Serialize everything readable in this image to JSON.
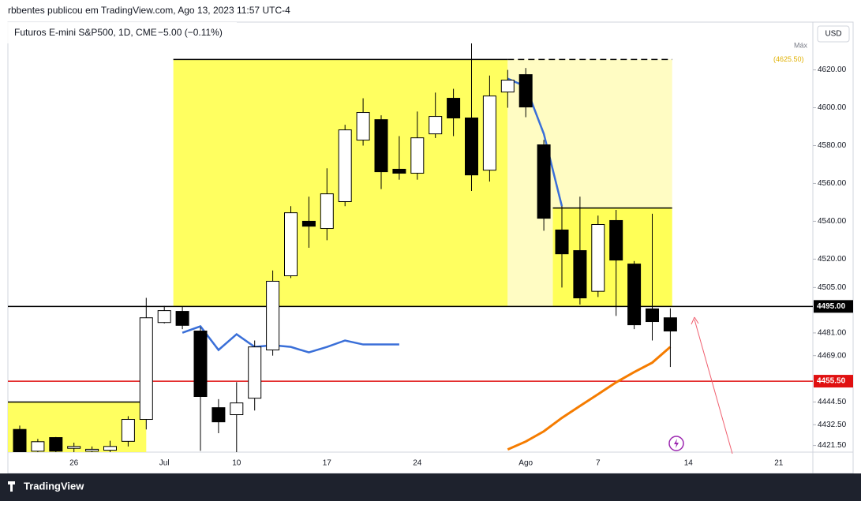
{
  "header": {
    "publisher": "rbbentes publicou em TradingView.com, Ago 13, 2023 11:57 UTC-4",
    "symbol": "Futuros E-mini S&P500, 1D, CME",
    "change": "−5.00 (−0.11%)",
    "currency": "USD",
    "max_label": "Máx",
    "footer": "TradingView"
  },
  "chart_data": {
    "type": "candlestick",
    "categories": [
      null,
      null,
      null,
      "26",
      null,
      null,
      null,
      null,
      "Jul",
      null,
      null,
      null,
      "10",
      null,
      null,
      null,
      null,
      "17",
      null,
      null,
      null,
      null,
      "24",
      null,
      null,
      null,
      null,
      null,
      "Ago",
      null,
      null,
      null,
      "7",
      null,
      null,
      null,
      null,
      "14",
      null,
      null,
      null,
      null,
      "21",
      null
    ],
    "open": [
      4430,
      4418.5,
      4425.7,
      4420,
      4418.5,
      4419,
      4423.7,
      4435.3,
      4486.5,
      4492.4,
      4482,
      4441.5,
      4437.8,
      4446.5,
      4472,
      4511.2,
      4540,
      4536.2,
      4550.4,
      4582.9,
      4593.7,
      4567.5,
      4565.4,
      4586.2,
      4605,
      4594.6,
      4567,
      4608.3,
      4617.5,
      4580.4,
      4535.4,
      4524.5,
      4503,
      4540.4,
      4517.4,
      4493.7,
      4489,
      null,
      null,
      null,
      null,
      null,
      null,
      null
    ],
    "high": [
      4432,
      4425,
      4426,
      4423,
      4421,
      4424,
      4437,
      4499.5,
      4495.3,
      4495,
      4484,
      4446,
      4455,
      4477,
      4514,
      4548,
      4553,
      4568,
      4591,
      4605,
      4596,
      4585,
      4598,
      4608,
      4610,
      4634,
      4617,
      4620,
      4621,
      4583,
      4548,
      4553,
      4543,
      4546,
      4519,
      4544,
      4494,
      null,
      null,
      null,
      null,
      null,
      null,
      null
    ],
    "low": [
      4416,
      4417,
      4417,
      4418,
      4417,
      4417,
      4421,
      4430,
      4486,
      4483,
      4418.7,
      4428,
      4418,
      4440,
      4469,
      4510,
      4526,
      4530,
      4548,
      4580,
      4557,
      4562,
      4562,
      4584,
      4585,
      4556,
      4561,
      4600,
      4595,
      4535,
      4505,
      4496,
      4500,
      4490,
      4483,
      4477,
      4463,
      null,
      null,
      null,
      null,
      null,
      null,
      null
    ],
    "close": [
      4418,
      4423.5,
      4418.5,
      4421,
      4419.5,
      4421,
      4435.3,
      4489,
      4492.8,
      4485,
      4447.4,
      4434,
      4444,
      4473.6,
      4508.3,
      4544.5,
      4537.4,
      4554.5,
      4588.3,
      4597.5,
      4566.2,
      4565.4,
      4584.1,
      4595.4,
      4594.6,
      4564.5,
      4606.2,
      4614.6,
      4600.4,
      4541.6,
      4522.8,
      4499.5,
      4538.3,
      4519.5,
      4485.3,
      4487,
      4482,
      null,
      null,
      null,
      null,
      null,
      null,
      null
    ],
    "up_color": "#ffffff",
    "down_color": "#000000",
    "overlays": [
      {
        "color": "#3a6fd8",
        "values": [
          null,
          null,
          null,
          null,
          null,
          null,
          null,
          null,
          null,
          4481.1,
          4484.5,
          4472,
          4480.3,
          4473.6,
          4474.5,
          4473.6,
          4470.7,
          4473.6,
          4477,
          4474.9,
          4474.9,
          4474.9,
          null,
          null,
          null,
          null,
          null,
          4615.4,
          4611.2,
          4586.2,
          4547.9,
          null,
          null,
          null,
          null,
          null,
          null,
          null,
          null,
          null,
          null,
          null,
          null,
          null
        ]
      },
      {
        "color": "#f57c00",
        "values": [
          null,
          null,
          null,
          null,
          null,
          null,
          null,
          null,
          null,
          null,
          null,
          null,
          null,
          null,
          null,
          null,
          null,
          null,
          null,
          null,
          null,
          null,
          null,
          null,
          null,
          null,
          null,
          4419.4,
          4423.6,
          4429,
          4436.1,
          4442.4,
          4448.6,
          4454.9,
          4460.3,
          4465.3,
          4473.6,
          null,
          null,
          null,
          null,
          null,
          null,
          null
        ]
      }
    ],
    "zones": [
      {
        "low": 4495,
        "high": 4625.5,
        "color": "#ffff44"
      },
      {
        "low": 4495,
        "high": 4625.5,
        "color": "#fffbb8"
      },
      {
        "low": 4418,
        "high": 4444.5,
        "color": "#ffff44"
      },
      {
        "low": 4495,
        "high": 4547,
        "color": "#ffff44"
      }
    ],
    "hlines": [
      {
        "value": 4495,
        "label": "4495.00",
        "color": "#000000"
      },
      {
        "value": 4455.5,
        "label": "4455.50",
        "color": "#e01010"
      }
    ],
    "annotation": "(4625.50)",
    "ylim": [
      4418,
      4634
    ],
    "yticks": [
      {
        "value": 4620,
        "label": "4620.00"
      },
      {
        "value": 4600,
        "label": "4600.00"
      },
      {
        "value": 4580,
        "label": "4580.00"
      },
      {
        "value": 4560,
        "label": "4560.00"
      },
      {
        "value": 4540,
        "label": "4540.00"
      },
      {
        "value": 4520,
        "label": "4520.00"
      },
      {
        "value": 4505,
        "label": "4505.00"
      },
      {
        "value": 4481,
        "label": "4481.00"
      },
      {
        "value": 4469,
        "label": "4469.00"
      },
      {
        "value": 4444.5,
        "label": "4444.50"
      },
      {
        "value": 4432.5,
        "label": "4432.50"
      },
      {
        "value": 4421.5,
        "label": "4421.50"
      }
    ]
  }
}
